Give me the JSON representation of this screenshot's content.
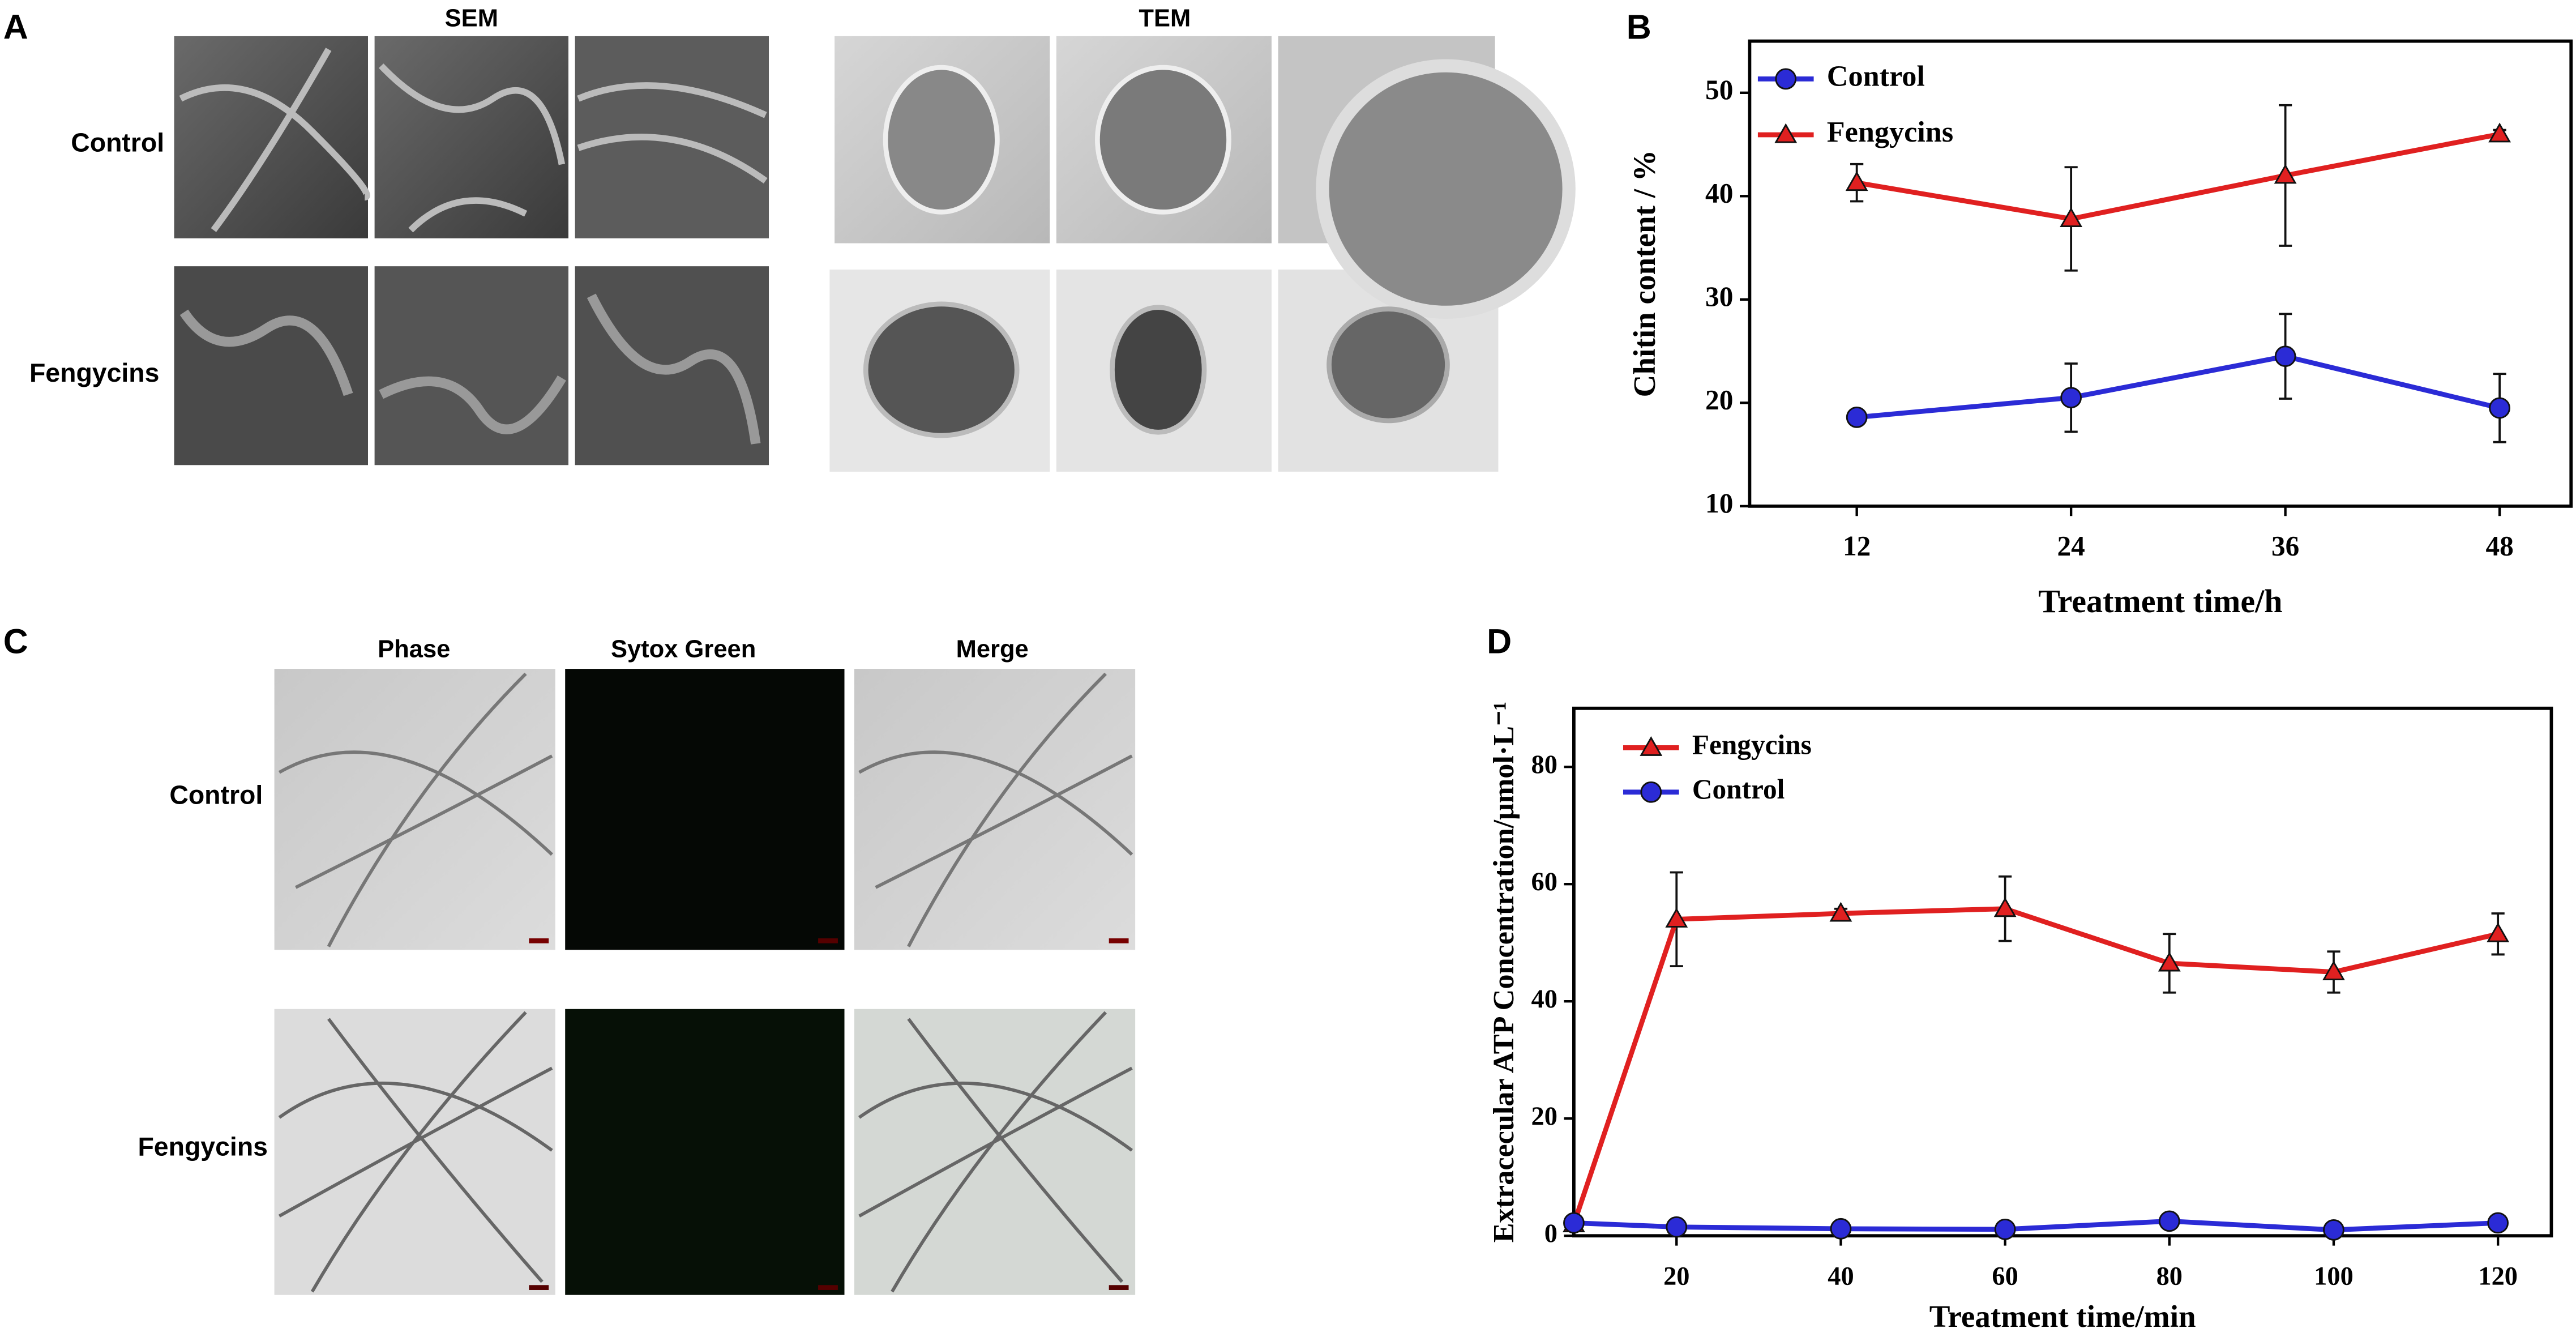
{
  "panels": {
    "a": {
      "letter": "A",
      "sem": "SEM",
      "tem": "TEM",
      "rows": [
        "Control",
        "Fengycins"
      ]
    },
    "c": {
      "letter": "C",
      "columns": [
        "Phase",
        "Sytox Green",
        "Merge"
      ],
      "rows": [
        "Control",
        "Fengycins"
      ]
    }
  },
  "chart_data": [
    {
      "type": "line",
      "panel": "B",
      "x_label": "Treatment time/h",
      "y_label": "Chitin content / %",
      "x": [
        12,
        24,
        36,
        48
      ],
      "xlim": [
        6,
        52
      ],
      "xticks": [
        12,
        24,
        36,
        48
      ],
      "ylim": [
        10,
        55
      ],
      "yticks": [
        10,
        20,
        30,
        40,
        50
      ],
      "legend": "upper left",
      "series": [
        {
          "name": "Control",
          "color": "#2b2bd6",
          "marker": "circle",
          "values": [
            18.6,
            20.5,
            24.5,
            19.5
          ],
          "errors": [
            0.4,
            3.3,
            4.1,
            3.3
          ]
        },
        {
          "name": "Fengycins",
          "color": "#e02020",
          "marker": "triangle",
          "values": [
            41.3,
            37.8,
            42.0,
            46.0
          ],
          "errors": [
            1.8,
            5.0,
            6.8,
            0.4
          ]
        }
      ]
    },
    {
      "type": "line",
      "panel": "D",
      "x_label": "Treatment time/min",
      "y_label": "Extracecular ATP Concentration/μmol·L⁻¹",
      "x": [
        7.5,
        20,
        40,
        60,
        80,
        100,
        120
      ],
      "xlim": [
        7.5,
        126.5
      ],
      "xticks": [
        20,
        40,
        60,
        80,
        100,
        120
      ],
      "ylim": [
        0,
        90
      ],
      "yticks": [
        0,
        20,
        40,
        60,
        80
      ],
      "legend": "upper left",
      "series": [
        {
          "name": "Fengycins",
          "color": "#e02020",
          "marker": "triangle",
          "values": [
            2.0,
            54.0,
            55.0,
            55.8,
            46.5,
            45.0,
            51.5
          ],
          "errors": [
            0.5,
            8.0,
            0.8,
            5.5,
            5.0,
            3.5,
            3.5
          ]
        },
        {
          "name": "Control",
          "color": "#2b2bd6",
          "marker": "circle",
          "values": [
            2.2,
            1.5,
            1.2,
            1.1,
            2.5,
            1.0,
            2.2
          ],
          "errors": [
            0.3,
            0.3,
            0.3,
            0.3,
            0.5,
            0.3,
            0.3
          ]
        }
      ]
    }
  ]
}
